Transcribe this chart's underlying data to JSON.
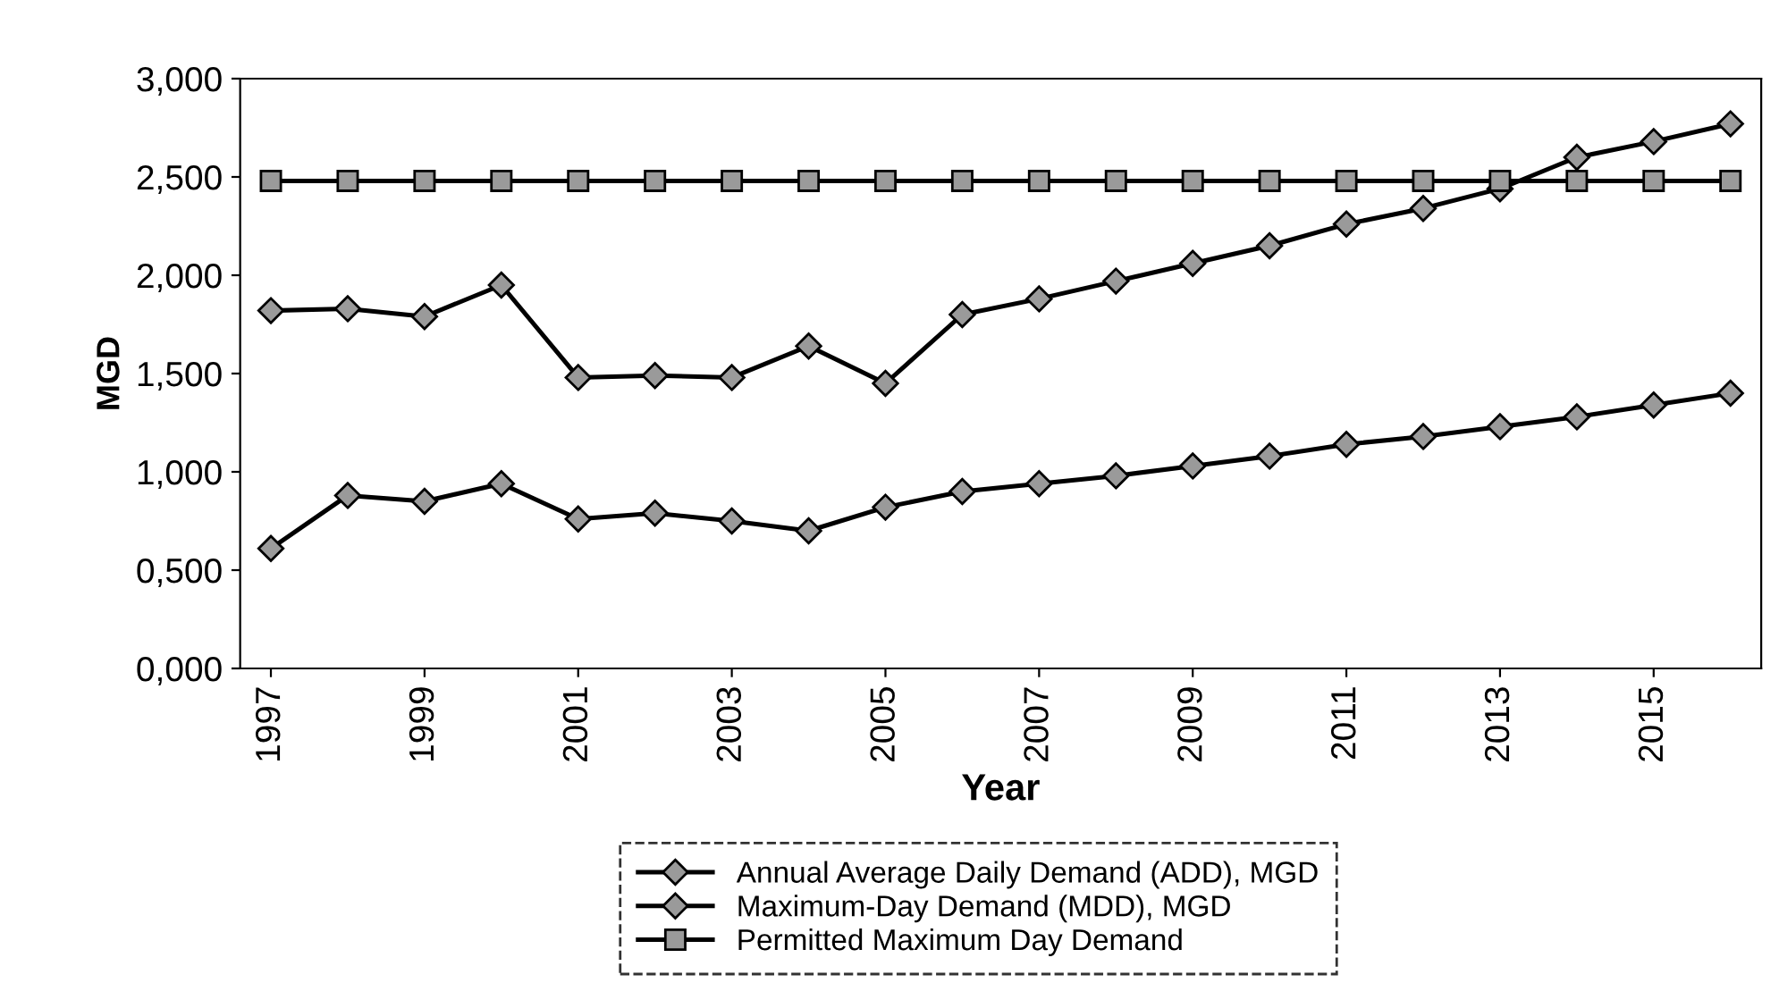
{
  "chart_data": {
    "type": "line",
    "xlabel": "Year",
    "ylabel": "MGD",
    "x": [
      1997,
      1998,
      1999,
      2000,
      2001,
      2002,
      2003,
      2004,
      2005,
      2006,
      2007,
      2008,
      2009,
      2010,
      2011,
      2012,
      2013,
      2014,
      2015,
      2016
    ],
    "series": [
      {
        "name": "Annual Average Daily Demand (ADD), MGD",
        "color": "#000000",
        "marker": "diamond",
        "values": [
          0.61,
          0.88,
          0.85,
          0.94,
          0.76,
          0.79,
          0.75,
          0.7,
          0.82,
          0.9,
          0.94,
          0.98,
          1.03,
          1.08,
          1.14,
          1.18,
          1.23,
          1.28,
          1.34,
          1.4
        ]
      },
      {
        "name": "Maximum-Day Demand (MDD), MGD",
        "color": "#000000",
        "marker": "diamond",
        "values": [
          1.82,
          1.83,
          1.79,
          1.95,
          1.48,
          1.49,
          1.48,
          1.64,
          1.45,
          1.8,
          1.88,
          1.97,
          2.06,
          2.15,
          2.26,
          2.34,
          2.44,
          2.6,
          2.68,
          2.77
        ]
      },
      {
        "name": "Permitted Maximum Day Demand",
        "color": "#000000",
        "marker": "square",
        "values": [
          2.48,
          2.48,
          2.48,
          2.48,
          2.48,
          2.48,
          2.48,
          2.48,
          2.48,
          2.48,
          2.48,
          2.48,
          2.48,
          2.48,
          2.48,
          2.48,
          2.48,
          2.48,
          2.48,
          2.48
        ]
      }
    ],
    "xlim": [
      1996.6,
      2016.4
    ],
    "xticks": [
      1997,
      1999,
      2001,
      2003,
      2005,
      2007,
      2009,
      2011,
      2013,
      2015
    ],
    "ylim": [
      0,
      3
    ],
    "yticks": [
      {
        "value": 0,
        "label": "0,000"
      },
      {
        "value": 0.5,
        "label": "0,500"
      },
      {
        "value": 1,
        "label": "1,000"
      },
      {
        "value": 1.5,
        "label": "1,500"
      },
      {
        "value": 2,
        "label": "2,000"
      },
      {
        "value": 2.5,
        "label": "2,500"
      },
      {
        "value": 3,
        "label": "3,000"
      }
    ],
    "grid": false,
    "legend": "bottom",
    "line_style": "solid"
  }
}
